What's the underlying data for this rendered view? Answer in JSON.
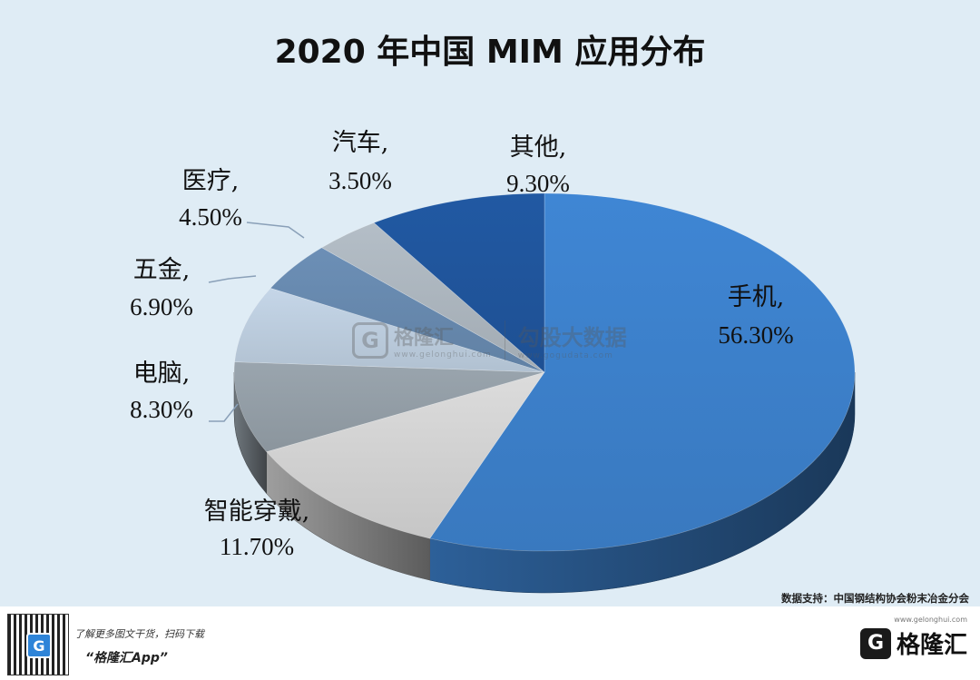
{
  "title": "2020 年中国 MIM 应用分布",
  "source_text": "数据支持：中国钢结构协会粉末冶金分会",
  "watermark": {
    "icon": "G",
    "brand": "格隆汇",
    "brand_url": "www.gelonghui.com",
    "partner": "勾股大数据",
    "partner_url": "www.gogudata.com"
  },
  "footer": {
    "promo_line": "了解更多图文干货，扫码下载",
    "app_name": "“格隆汇App”",
    "brand": "格隆汇",
    "brand_url": "www.gelonghui.com",
    "logo_icon": "G",
    "qr_icon": "G"
  },
  "chart_data": {
    "type": "pie",
    "style": "3d",
    "slices": [
      {
        "label": "手机",
        "value": 56.3,
        "value_text": "56.30%",
        "color": "#3f86d4"
      },
      {
        "label": "智能穿戴",
        "value": 11.7,
        "value_text": "11.70%",
        "color": "#dcdcdc"
      },
      {
        "label": "电脑",
        "value": 8.3,
        "value_text": "8.30%",
        "color": "#9aa5ae"
      },
      {
        "label": "五金",
        "value": 6.9,
        "value_text": "6.90%",
        "color": "#c5d6e8"
      },
      {
        "label": "医疗",
        "value": 4.5,
        "value_text": "4.50%",
        "color": "#6c8fb6"
      },
      {
        "label": "汽车",
        "value": 3.5,
        "value_text": "3.50%",
        "color": "#b4bec7"
      },
      {
        "label": "其他",
        "value": 9.3,
        "value_text": "9.30%",
        "color": "#2159a3"
      }
    ]
  }
}
